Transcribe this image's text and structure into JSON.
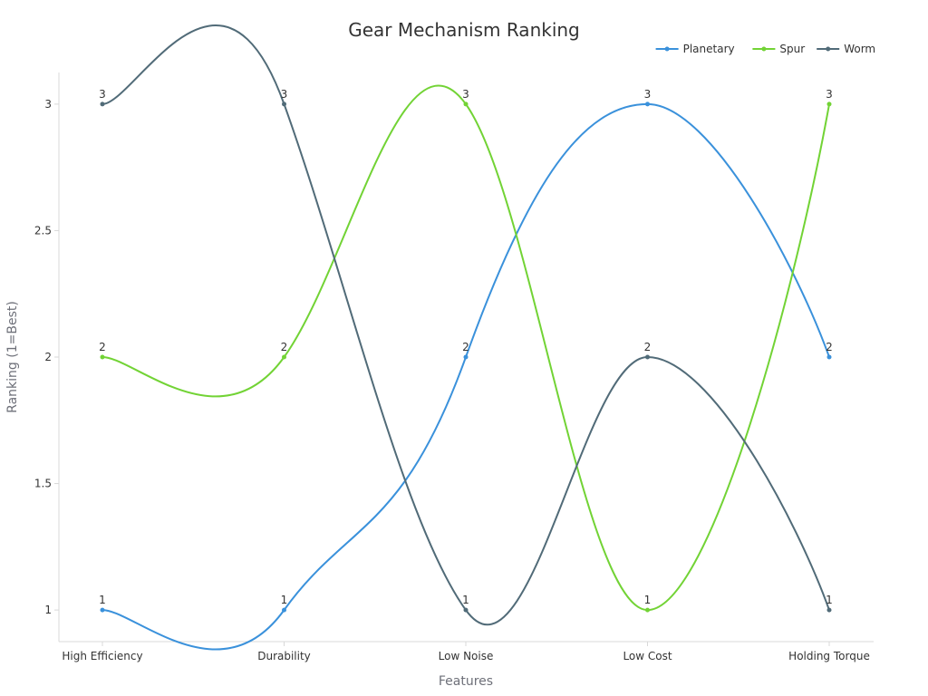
{
  "chart_data": {
    "type": "line",
    "title": "Gear Mechanism Ranking",
    "xlabel": "Features",
    "ylabel": "Ranking (1=Best)",
    "categories": [
      "High Efficiency",
      "Durability",
      "Low Noise",
      "Low Cost",
      "Holding Torque"
    ],
    "ylim": [
      0.875,
      3.125
    ],
    "yticks": [
      1,
      1.5,
      2,
      2.5,
      3
    ],
    "ytick_labels": [
      "1",
      "1.5",
      "2",
      "2.5",
      "3"
    ],
    "smooth": true,
    "grid": false,
    "legend_position": "top-right",
    "series": [
      {
        "name": "Planetary",
        "color": "#3a91db",
        "values": [
          1,
          1,
          2,
          3,
          2
        ],
        "labels": [
          "1",
          "1",
          "2",
          "3",
          "2"
        ]
      },
      {
        "name": "Spur",
        "color": "#72d335",
        "values": [
          2,
          2,
          3,
          1,
          3
        ],
        "labels": [
          "2",
          "2",
          "3",
          "1",
          "3"
        ]
      },
      {
        "name": "Worm",
        "color": "#516b78",
        "values": [
          3,
          3,
          1,
          2,
          1
        ],
        "labels": [
          "3",
          "3",
          "1",
          "2",
          "1"
        ]
      }
    ]
  }
}
